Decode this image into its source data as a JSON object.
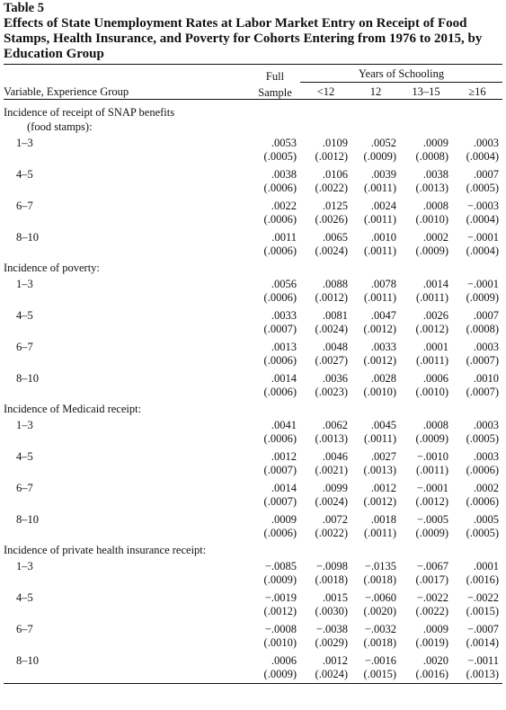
{
  "table": {
    "number": "Table 5",
    "title": "Effects of State Unemployment Rates at Labor Market Entry on Receipt of Food Stamps, Health Insurance, and Poverty for Cohorts Entering from 1976 to 2015, by Education Group",
    "header": {
      "variable": "Variable, Experience Group",
      "full_line1": "Full",
      "full_line2": "Sample",
      "years_group": "Years of Schooling",
      "cols": [
        "<12",
        "12",
        "13–15",
        "≥16"
      ]
    },
    "sections": [
      {
        "label": "Incidence of receipt of SNAP benefits",
        "sublabel": "(food stamps):",
        "rows": [
          {
            "exp": "1–3",
            "est": [
              ".0053",
              ".0109",
              ".0052",
              ".0009",
              ".0003"
            ],
            "se": [
              "(.0005)",
              "(.0012)",
              "(.0009)",
              "(.0008)",
              "(.0004)"
            ]
          },
          {
            "exp": "4–5",
            "est": [
              ".0038",
              ".0106",
              ".0039",
              ".0038",
              ".0007"
            ],
            "se": [
              "(.0006)",
              "(.0022)",
              "(.0011)",
              "(.0013)",
              "(.0005)"
            ]
          },
          {
            "exp": "6–7",
            "est": [
              ".0022",
              ".0125",
              ".0024",
              ".0008",
              "−.0003"
            ],
            "se": [
              "(.0006)",
              "(.0026)",
              "(.0011)",
              "(.0010)",
              "(.0004)"
            ]
          },
          {
            "exp": "8–10",
            "est": [
              ".0011",
              ".0065",
              ".0010",
              ".0002",
              "−.0001"
            ],
            "se": [
              "(.0006)",
              "(.0024)",
              "(.0011)",
              "(.0009)",
              "(.0004)"
            ]
          }
        ]
      },
      {
        "label": "Incidence of poverty:",
        "sublabel": "",
        "rows": [
          {
            "exp": "1–3",
            "est": [
              ".0056",
              ".0088",
              ".0078",
              ".0014",
              "−.0001"
            ],
            "se": [
              "(.0006)",
              "(.0012)",
              "(.0011)",
              "(.0011)",
              "(.0009)"
            ]
          },
          {
            "exp": "4–5",
            "est": [
              ".0033",
              ".0081",
              ".0047",
              ".0026",
              ".0007"
            ],
            "se": [
              "(.0007)",
              "(.0024)",
              "(.0012)",
              "(.0012)",
              "(.0008)"
            ]
          },
          {
            "exp": "6–7",
            "est": [
              ".0013",
              ".0048",
              ".0033",
              ".0001",
              ".0003"
            ],
            "se": [
              "(.0006)",
              "(.0027)",
              "(.0012)",
              "(.0011)",
              "(.0007)"
            ]
          },
          {
            "exp": "8–10",
            "est": [
              ".0014",
              ".0036",
              ".0028",
              ".0006",
              ".0010"
            ],
            "se": [
              "(.0006)",
              "(.0023)",
              "(.0010)",
              "(.0010)",
              "(.0007)"
            ]
          }
        ]
      },
      {
        "label": "Incidence of Medicaid receipt:",
        "sublabel": "",
        "rows": [
          {
            "exp": "1–3",
            "est": [
              ".0041",
              ".0062",
              ".0045",
              ".0008",
              ".0003"
            ],
            "se": [
              "(.0006)",
              "(.0013)",
              "(.0011)",
              "(.0009)",
              "(.0005)"
            ]
          },
          {
            "exp": "4–5",
            "est": [
              ".0012",
              ".0046",
              ".0027",
              "−.0010",
              ".0003"
            ],
            "se": [
              "(.0007)",
              "(.0021)",
              "(.0013)",
              "(.0011)",
              "(.0006)"
            ]
          },
          {
            "exp": "6–7",
            "est": [
              ".0014",
              ".0099",
              ".0012",
              "−.0001",
              ".0002"
            ],
            "se": [
              "(.0007)",
              "(.0024)",
              "(.0012)",
              "(.0012)",
              "(.0006)"
            ]
          },
          {
            "exp": "8–10",
            "est": [
              ".0009",
              ".0072",
              ".0018",
              "−.0005",
              ".0005"
            ],
            "se": [
              "(.0006)",
              "(.0022)",
              "(.0011)",
              "(.0009)",
              "(.0005)"
            ]
          }
        ]
      },
      {
        "label": "Incidence of private health insurance receipt:",
        "sublabel": "",
        "rows": [
          {
            "exp": "1–3",
            "est": [
              "−.0085",
              "−.0098",
              "−.0135",
              "−.0067",
              ".0001"
            ],
            "se": [
              "(.0009)",
              "(.0018)",
              "(.0018)",
              "(.0017)",
              "(.0016)"
            ]
          },
          {
            "exp": "4–5",
            "est": [
              "−.0019",
              ".0015",
              "−.0060",
              "−.0022",
              "−.0022"
            ],
            "se": [
              "(.0012)",
              "(.0030)",
              "(.0020)",
              "(.0022)",
              "(.0015)"
            ]
          },
          {
            "exp": "6–7",
            "est": [
              "−.0008",
              "−.0038",
              "−.0032",
              ".0009",
              "−.0007"
            ],
            "se": [
              "(.0010)",
              "(.0029)",
              "(.0018)",
              "(.0019)",
              "(.0014)"
            ]
          },
          {
            "exp": "8–10",
            "est": [
              ".0006",
              ".0012",
              "−.0016",
              ".0020",
              "−.0011"
            ],
            "se": [
              "(.0009)",
              "(.0024)",
              "(.0015)",
              "(.0016)",
              "(.0013)"
            ]
          }
        ]
      }
    ]
  }
}
